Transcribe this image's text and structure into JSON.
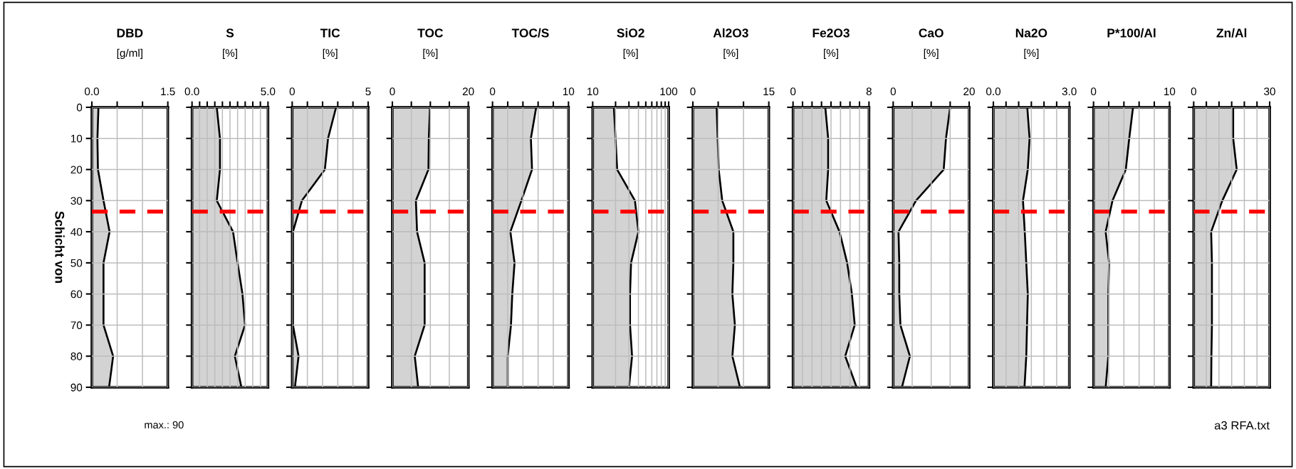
{
  "chart_data": [
    {
      "type": "area",
      "title": "DBD",
      "subtitle": "[g/ml]",
      "ylabel": "Schicht von",
      "orientation": "horizontal",
      "color": "#d3d3d3",
      "x": [
        0,
        10,
        20,
        30,
        40,
        50,
        60,
        70,
        80,
        90
      ],
      "values": [
        0.13,
        0.11,
        0.12,
        0.23,
        0.35,
        0.23,
        0.23,
        0.23,
        0.42,
        0.34
      ],
      "xlim": [
        0,
        1.5
      ],
      "xticks": [
        {
          "value": 0,
          "label": "0.0"
        },
        {
          "value": 0.5,
          "label": null
        },
        {
          "value": 1.0,
          "label": null
        },
        {
          "value": 1.5,
          "label": "1.5"
        }
      ],
      "ylim": [
        90,
        0
      ],
      "yticks": [
        0,
        10,
        20,
        30,
        40,
        50,
        60,
        70,
        80,
        90
      ],
      "grid": true,
      "ref_lines": [
        {
          "axis": "y",
          "value": 33.5,
          "color": "#ff0000",
          "line_style": "dashed"
        }
      ],
      "annotations": [
        "max.: 90"
      ]
    },
    {
      "type": "area",
      "title": "S",
      "subtitle": "[%]",
      "orientation": "horizontal",
      "color": "#d3d3d3",
      "x": [
        0,
        10,
        20,
        30,
        40,
        50,
        60,
        70,
        80,
        90
      ],
      "values": [
        1.63,
        1.84,
        1.84,
        1.63,
        2.7,
        3.0,
        3.32,
        3.49,
        2.82,
        3.25
      ],
      "xlim": [
        0,
        5
      ],
      "xticks": [
        {
          "value": 0,
          "label": "0.0"
        },
        {
          "value": 0.5,
          "label": null
        },
        {
          "value": 1.0,
          "label": null
        },
        {
          "value": 1.5,
          "label": null
        },
        {
          "value": 2.0,
          "label": null
        },
        {
          "value": 2.5,
          "label": null
        },
        {
          "value": 3.0,
          "label": null
        },
        {
          "value": 3.5,
          "label": null
        },
        {
          "value": 4.0,
          "label": null
        },
        {
          "value": 4.5,
          "label": null
        },
        {
          "value": 5,
          "label": "5.0"
        }
      ],
      "ylim": [
        90,
        0
      ],
      "yticks": [
        0,
        10,
        20,
        30,
        40,
        50,
        60,
        70,
        80,
        90
      ],
      "tick_labels": "x",
      "grid": true,
      "ref_lines": [
        {
          "axis": "y",
          "value": 33.5,
          "color": "#ff0000",
          "line_style": "dashed"
        }
      ]
    },
    {
      "type": "area",
      "title": "TIC",
      "subtitle": "[%]",
      "orientation": "horizontal",
      "color": "#d3d3d3",
      "x": [
        0,
        10,
        20,
        30,
        40,
        50,
        60,
        70,
        80,
        90
      ],
      "values": [
        2.89,
        2.36,
        2.15,
        0.64,
        0.05,
        0.05,
        0.05,
        0.05,
        0.42,
        0.18
      ],
      "xlim": [
        0,
        5
      ],
      "xticks": [
        0,
        {
          "value": 1,
          "label": null
        },
        {
          "value": 2,
          "label": null
        },
        {
          "value": 3,
          "label": null
        },
        {
          "value": 4,
          "label": null
        },
        5
      ],
      "ylim": [
        90,
        0
      ],
      "yticks": [
        0,
        10,
        20,
        30,
        40,
        50,
        60,
        70,
        80,
        90
      ],
      "tick_labels": "x",
      "grid": true,
      "ref_lines": [
        {
          "axis": "y",
          "value": 33.5,
          "color": "#ff0000",
          "line_style": "dashed"
        }
      ]
    },
    {
      "type": "area",
      "title": "TOC",
      "subtitle": "[%]",
      "orientation": "horizontal",
      "color": "#d3d3d3",
      "x": [
        0,
        10,
        20,
        30,
        40,
        50,
        60,
        70,
        80,
        90
      ],
      "values": [
        9.9,
        9.6,
        9.5,
        6.2,
        6.5,
        8.5,
        8.5,
        8.5,
        5.9,
        6.8
      ],
      "xlim": [
        0,
        20
      ],
      "xticks": [
        0,
        {
          "value": 5,
          "label": null
        },
        {
          "value": 10,
          "label": null
        },
        {
          "value": 15,
          "label": null
        },
        20
      ],
      "ylim": [
        90,
        0
      ],
      "yticks": [
        0,
        10,
        20,
        30,
        40,
        50,
        60,
        70,
        80,
        90
      ],
      "tick_labels": "x",
      "grid": true,
      "ref_lines": [
        {
          "axis": "y",
          "value": 33.5,
          "color": "#ff0000",
          "line_style": "dashed"
        }
      ]
    },
    {
      "type": "area",
      "title": "TOC/S",
      "orientation": "horizontal",
      "color": "#d3d3d3",
      "x": [
        0,
        10,
        20,
        30,
        40,
        50,
        60,
        70,
        80,
        90
      ],
      "values": [
        5.75,
        5.05,
        5.2,
        3.8,
        2.35,
        2.9,
        2.6,
        2.43,
        2.0,
        2.0
      ],
      "xlim": [
        0,
        10
      ],
      "xticks": [
        0,
        {
          "value": 2,
          "label": null
        },
        {
          "value": 4,
          "label": null
        },
        {
          "value": 6,
          "label": null
        },
        {
          "value": 8,
          "label": null
        },
        10
      ],
      "ylim": [
        90,
        0
      ],
      "yticks": [
        0,
        10,
        20,
        30,
        40,
        50,
        60,
        70,
        80,
        90
      ],
      "tick_labels": "x",
      "grid": true,
      "ref_lines": [
        {
          "axis": "y",
          "value": 33.5,
          "color": "#ff0000",
          "line_style": "dashed"
        }
      ]
    },
    {
      "type": "area",
      "title": "SiO2",
      "subtitle": "[%]",
      "orientation": "horizontal",
      "color": "#d3d3d3",
      "log": "x",
      "x": [
        0,
        10,
        20,
        30,
        40,
        50,
        60,
        70,
        80,
        90
      ],
      "values": [
        19,
        20,
        21,
        36,
        40,
        32,
        31,
        31,
        33,
        30
      ],
      "xlim": [
        10,
        100
      ],
      "xticks": [
        10,
        {
          "value": 20,
          "label": null
        },
        {
          "value": 30,
          "label": null
        },
        {
          "value": 40,
          "label": null
        },
        {
          "value": 50,
          "label": null
        },
        {
          "value": 60,
          "label": null
        },
        {
          "value": 70,
          "label": null
        },
        {
          "value": 80,
          "label": null
        },
        {
          "value": 90,
          "label": null
        },
        100
      ],
      "ylim": [
        90,
        0
      ],
      "yticks": [
        0,
        10,
        20,
        30,
        40,
        50,
        60,
        70,
        80,
        90
      ],
      "tick_labels": "x",
      "grid": true,
      "ref_lines": [
        {
          "axis": "y",
          "value": 33.5,
          "color": "#ff0000",
          "line_style": "dashed"
        }
      ]
    },
    {
      "type": "area",
      "title": "Al2O3",
      "subtitle": "[%]",
      "orientation": "horizontal",
      "color": "#d3d3d3",
      "x": [
        0,
        10,
        20,
        30,
        40,
        50,
        60,
        70,
        80,
        90
      ],
      "values": [
        4.7,
        4.9,
        5.1,
        5.8,
        8.0,
        8.0,
        7.8,
        8.3,
        7.8,
        9.3
      ],
      "xlim": [
        0,
        15
      ],
      "xticks": [
        0,
        {
          "value": 5,
          "label": null
        },
        {
          "value": 10,
          "label": null
        },
        15
      ],
      "ylim": [
        90,
        0
      ],
      "yticks": [
        0,
        10,
        20,
        30,
        40,
        50,
        60,
        70,
        80,
        90
      ],
      "tick_labels": "x",
      "grid": true,
      "ref_lines": [
        {
          "axis": "y",
          "value": 33.5,
          "color": "#ff0000",
          "line_style": "dashed"
        }
      ]
    },
    {
      "type": "area",
      "title": "Fe2O3",
      "subtitle": "[%]",
      "orientation": "horizontal",
      "color": "#d3d3d3",
      "x": [
        0,
        10,
        20,
        30,
        40,
        50,
        60,
        70,
        80,
        90
      ],
      "values": [
        3.4,
        3.7,
        3.7,
        3.5,
        4.9,
        5.7,
        6.2,
        6.5,
        5.5,
        6.7
      ],
      "xlim": [
        0,
        8
      ],
      "xticks": [
        0,
        {
          "value": 1,
          "label": null
        },
        {
          "value": 2,
          "label": null
        },
        {
          "value": 3,
          "label": null
        },
        {
          "value": 4,
          "label": null
        },
        {
          "value": 5,
          "label": null
        },
        {
          "value": 6,
          "label": null
        },
        {
          "value": 7,
          "label": null
        },
        8
      ],
      "ylim": [
        90,
        0
      ],
      "yticks": [
        0,
        10,
        20,
        30,
        40,
        50,
        60,
        70,
        80,
        90
      ],
      "tick_labels": "x",
      "grid": true,
      "ref_lines": [
        {
          "axis": "y",
          "value": 33.5,
          "color": "#ff0000",
          "line_style": "dashed"
        }
      ]
    },
    {
      "type": "area",
      "title": "CaO",
      "subtitle": "[%]",
      "orientation": "horizontal",
      "color": "#d3d3d3",
      "x": [
        0,
        10,
        20,
        30,
        40,
        50,
        60,
        70,
        80,
        90
      ],
      "values": [
        15.0,
        13.9,
        13.3,
        6.0,
        1.4,
        1.6,
        1.6,
        1.9,
        4.4,
        2.3
      ],
      "xlim": [
        0,
        20
      ],
      "xticks": [
        0,
        {
          "value": 5,
          "label": null
        },
        {
          "value": 10,
          "label": null
        },
        {
          "value": 15,
          "label": null
        },
        20
      ],
      "ylim": [
        90,
        0
      ],
      "yticks": [
        0,
        10,
        20,
        30,
        40,
        50,
        60,
        70,
        80,
        90
      ],
      "tick_labels": "x",
      "grid": true,
      "ref_lines": [
        {
          "axis": "y",
          "value": 33.5,
          "color": "#ff0000",
          "line_style": "dashed"
        }
      ]
    },
    {
      "type": "area",
      "title": "Na2O",
      "subtitle": "[%]",
      "orientation": "horizontal",
      "color": "#d3d3d3",
      "x": [
        0,
        10,
        20,
        30,
        40,
        50,
        60,
        70,
        80,
        90
      ],
      "values": [
        1.34,
        1.43,
        1.36,
        1.17,
        1.24,
        1.3,
        1.36,
        1.33,
        1.3,
        1.23
      ],
      "xlim": [
        0,
        3
      ],
      "xticks": [
        {
          "value": 0,
          "label": "0.0"
        },
        {
          "value": 0.5,
          "label": null
        },
        {
          "value": 1.0,
          "label": null
        },
        {
          "value": 1.5,
          "label": null
        },
        {
          "value": 2.0,
          "label": null
        },
        {
          "value": 2.5,
          "label": null
        },
        {
          "value": 3,
          "label": "3.0"
        }
      ],
      "ylim": [
        90,
        0
      ],
      "yticks": [
        0,
        10,
        20,
        30,
        40,
        50,
        60,
        70,
        80,
        90
      ],
      "tick_labels": "x",
      "grid": true,
      "ref_lines": [
        {
          "axis": "y",
          "value": 33.5,
          "color": "#ff0000",
          "line_style": "dashed"
        }
      ]
    },
    {
      "type": "area",
      "title": "P*100/Al",
      "orientation": "horizontal",
      "color": "#d3d3d3",
      "x": [
        0,
        10,
        20,
        30,
        40,
        50,
        60,
        70,
        80,
        90
      ],
      "values": [
        5.2,
        4.7,
        4.25,
        2.5,
        1.6,
        2.05,
        1.95,
        1.95,
        1.95,
        1.6
      ],
      "xlim": [
        0,
        10
      ],
      "xticks": [
        0,
        {
          "value": 2,
          "label": null
        },
        {
          "value": 4,
          "label": null
        },
        {
          "value": 6,
          "label": null
        },
        {
          "value": 8,
          "label": null
        },
        10
      ],
      "ylim": [
        90,
        0
      ],
      "yticks": [
        0,
        10,
        20,
        30,
        40,
        50,
        60,
        70,
        80,
        90
      ],
      "tick_labels": "x",
      "grid": true,
      "ref_lines": [
        {
          "axis": "y",
          "value": 33.5,
          "color": "#ff0000",
          "line_style": "dashed"
        }
      ]
    },
    {
      "type": "area",
      "title": "Zn/Al",
      "orientation": "horizontal",
      "color": "#d3d3d3",
      "x": [
        0,
        10,
        20,
        30,
        40,
        50,
        60,
        70,
        80,
        90
      ],
      "values": [
        15.6,
        15.6,
        17.0,
        11.3,
        6.9,
        7.2,
        7.2,
        7.2,
        7.0,
        6.9
      ],
      "xlim": [
        0,
        30
      ],
      "xticks": [
        0,
        {
          "value": 5,
          "label": null
        },
        {
          "value": 10,
          "label": null
        },
        {
          "value": 15,
          "label": null
        },
        {
          "value": 20,
          "label": null
        },
        {
          "value": 25,
          "label": null
        },
        30
      ],
      "ylim": [
        90,
        0
      ],
      "yticks": [
        0,
        10,
        20,
        30,
        40,
        50,
        60,
        70,
        80,
        90
      ],
      "tick_labels": "x",
      "grid": true,
      "ref_lines": [
        {
          "axis": "y",
          "value": 33.5,
          "color": "#ff0000",
          "line_style": "dashed"
        }
      ],
      "annotations": [
        "a3 RFA.txt"
      ]
    }
  ]
}
